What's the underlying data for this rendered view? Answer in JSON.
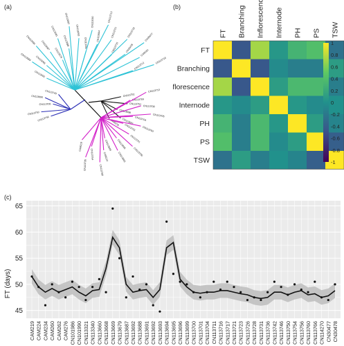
{
  "panels": {
    "a": "(a)",
    "b": "(b)",
    "c": "(c)"
  },
  "colors": {
    "tree_cyan": "#2ec3d6",
    "tree_blue": "#2b2fb5",
    "tree_magenta": "#d21fc8",
    "tree_black": "#111111",
    "smooth_band": "#cfcfcf",
    "plot_bg": "#ebebeb",
    "grid": "#ffffff",
    "viridis": [
      "#440154",
      "#3b528b",
      "#21918c",
      "#5ec962",
      "#fde725"
    ]
  },
  "tree": {
    "cyan_labels": [
      "CN113092",
      "CN113089",
      "CN113095",
      "CN113096",
      "CN113687",
      "CN113079",
      "CN113081",
      "CN113088",
      "CN113082",
      "CN113093",
      "CN113091",
      "CN113090",
      "CN113694",
      "CN113713",
      "CN113721",
      "CN113715",
      "CN113718",
      "CN30478",
      "CN30477",
      "CAM262",
      "CN113712",
      "CN113716"
    ],
    "black_labels": [
      "CAM276",
      "CN113697",
      "CN113698",
      "CN113751",
      "CN113752"
    ],
    "blue_labels": [
      "CN113749",
      "CN113690",
      "CN113706",
      "CN113750",
      "CN113756"
    ],
    "magenta_labels": [
      "CAM219",
      "CN113735",
      "CN113754",
      "CN113760",
      "CAM224",
      "CN113699",
      "CN113695",
      "CN113696",
      "CN113700",
      "CN113701",
      "CN113702",
      "CN113703",
      "CN113704",
      "CN113705",
      "CN113708",
      "CN113709",
      "CN113710"
    ]
  },
  "chart_data": [
    {
      "type": "heatmap",
      "panel": "b",
      "rows": [
        "FT",
        "Branching",
        "Inflorescence",
        "Internode",
        "PH",
        "PS",
        "TSW"
      ],
      "columns": [
        "FT",
        "Branching",
        "Inflorescence",
        "Internode",
        "PH",
        "PS",
        "TSW"
      ],
      "values": [
        [
          1.0,
          -0.45,
          0.72,
          0.05,
          0.3,
          0.4,
          -0.25
        ],
        [
          -0.45,
          1.0,
          -0.45,
          -0.05,
          -0.15,
          -0.15,
          0.1
        ],
        [
          0.72,
          -0.45,
          1.0,
          0.1,
          0.35,
          0.35,
          -0.15
        ],
        [
          0.05,
          -0.05,
          0.1,
          1.0,
          0.05,
          -0.05,
          0.0
        ],
        [
          0.3,
          -0.15,
          0.35,
          0.05,
          1.0,
          0.1,
          -0.1
        ],
        [
          0.4,
          -0.15,
          0.35,
          -0.05,
          0.1,
          1.0,
          -0.4
        ],
        [
          -0.25,
          0.1,
          -0.15,
          0.0,
          -0.1,
          -0.4,
          1.0
        ]
      ],
      "colorbar": {
        "ticks": [
          "1",
          "0.8",
          "0.6",
          "0.4",
          "0.2",
          "0",
          "-0.2",
          "-0.4",
          "-0.6",
          "-0.8",
          "-1"
        ],
        "range": [
          -1,
          1
        ]
      }
    },
    {
      "type": "line",
      "panel": "c",
      "ylabel": "FT (days)",
      "ylim": [
        43.5,
        66
      ],
      "yticks": [
        "65",
        "60",
        "55",
        "50",
        "45"
      ],
      "categories": [
        "CAM219",
        "CAM224",
        "CAM234",
        "CAM260",
        "CAM262",
        "CAM276",
        "CN101986",
        "CN101990",
        "CN113321",
        "CN113340",
        "CN113660",
        "CN113668",
        "CN113669",
        "CN113679",
        "CN113687",
        "CN113692",
        "CN113688",
        "CN113691",
        "CN113692",
        "CN113693",
        "CN113694",
        "CN113695",
        "CN113696",
        "CN113699",
        "CN113700",
        "CN113701",
        "CN113704",
        "CN113711",
        "CN113716",
        "CN113717",
        "CN113721",
        "CN113723",
        "CN113726",
        "CN113728",
        "CN113731",
        "CN113736",
        "CN113742",
        "CN113746",
        "CN113750",
        "CN113754",
        "CN113756",
        "CN113760",
        "CN113766",
        "CN114270",
        "CN30477",
        "CN30478"
      ],
      "series": [
        {
          "kind": "points",
          "values": [
            51.5,
            49.5,
            46.0,
            50.0,
            48.5,
            47.5,
            50.5,
            49.5,
            47.0,
            49.5,
            51.0,
            48.5,
            64.5,
            55.0,
            47.5,
            51.5,
            49.0,
            50.0,
            46.0,
            44.8,
            62.0,
            52.0,
            50.5,
            50.0,
            48.5,
            47.5,
            48.5,
            50.5,
            49.0,
            50.5,
            49.5,
            48.5,
            47.0,
            47.5,
            47.0,
            48.5,
            50.5,
            49.5,
            48.0,
            50.0,
            49.0,
            48.5,
            50.5,
            47.5,
            47.0,
            50.0
          ]
        },
        {
          "kind": "smooth",
          "values": [
            51.5,
            49.5,
            48.5,
            49.2,
            48.5,
            49.0,
            49.5,
            48.5,
            47.8,
            48.8,
            49.0,
            53.0,
            59.0,
            57.0,
            50.0,
            48.5,
            48.8,
            49.0,
            47.5,
            49.0,
            57.0,
            58.0,
            51.0,
            49.5,
            48.5,
            48.3,
            48.5,
            48.5,
            48.8,
            48.8,
            48.5,
            48.2,
            48.0,
            47.5,
            47.3,
            47.5,
            48.5,
            48.5,
            48.0,
            48.5,
            48.8,
            48.0,
            48.2,
            47.5,
            47.8,
            48.8
          ]
        }
      ]
    }
  ]
}
